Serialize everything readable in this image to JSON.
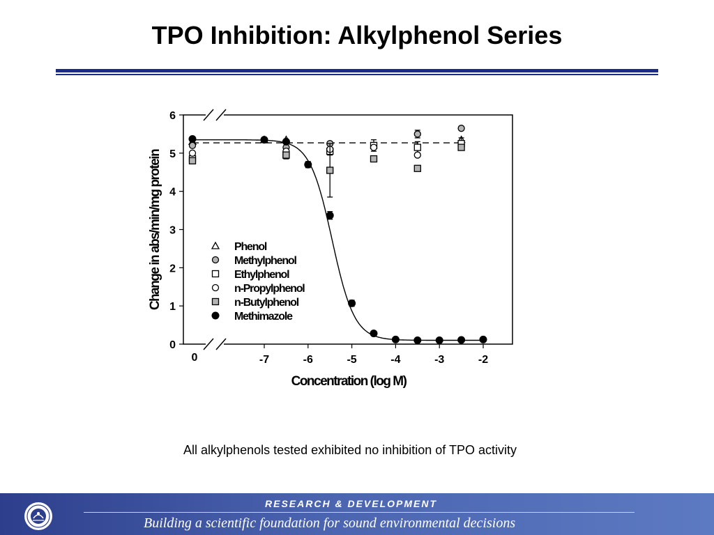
{
  "slide": {
    "title": "TPO Inhibition:  Alkylphenol Series",
    "caption": "All alkylphenols tested exhibited no inhibition of TPO activity"
  },
  "footer": {
    "heading": "RESEARCH &  DEVELOPMENT",
    "tagline": "Building a scientific foundation for sound environmental decisions",
    "seal_icon": "epa-seal-icon"
  },
  "colors": {
    "title_rule": "#1b2a8c",
    "footer_band": "#3d55a6",
    "open_marker_fill": "#ffffff",
    "gray_marker_fill": "#b4b4b4",
    "filled_marker": "#000000"
  },
  "chart_data": {
    "type": "scatter",
    "xlabel": "Concentration (log M)",
    "ylabel": "Change in abs/min/mg protein",
    "xlim": [
      -7.8,
      -1.3
    ],
    "ylim": [
      0,
      6
    ],
    "xticks": [
      "-7",
      "-6",
      "-5",
      "-4",
      "-3",
      "-2"
    ],
    "xtick_values": [
      -7,
      -6,
      -5,
      -4,
      -3,
      -2
    ],
    "x_zero_label": "0",
    "yticks": [
      "0",
      "1",
      "2",
      "3",
      "4",
      "5",
      "6"
    ],
    "ytick_values": [
      0,
      1,
      2,
      3,
      4,
      5,
      6
    ],
    "axis_break": true,
    "legend_position": "center-left",
    "series": [
      {
        "name": "Phenol",
        "marker": "triangle-open",
        "points": [
          {
            "x": 0,
            "y": 5.3,
            "err": 0
          },
          {
            "x": -7,
            "y": 5.35,
            "err": 0
          },
          {
            "x": -6.5,
            "y": 5.35,
            "err": 0
          },
          {
            "x": -2.5,
            "y": 5.35,
            "err": 0
          }
        ]
      },
      {
        "name": "Methylphenol",
        "marker": "circle-gray",
        "points": [
          {
            "x": 0,
            "y": 5.2,
            "err": 0
          },
          {
            "x": -6.5,
            "y": 5.15,
            "err": 0
          },
          {
            "x": -5.5,
            "y": 5.25,
            "err": 0
          },
          {
            "x": -3.5,
            "y": 5.5,
            "err": 0.1
          },
          {
            "x": -2.5,
            "y": 5.65,
            "err": 0
          }
        ]
      },
      {
        "name": "Ethylphenol",
        "marker": "square-open",
        "points": [
          {
            "x": 0,
            "y": 4.85,
            "err": 0.1
          },
          {
            "x": -6.5,
            "y": 4.95,
            "err": 0.1
          },
          {
            "x": -5.5,
            "y": 5.05,
            "err": 0.1
          },
          {
            "x": -4.5,
            "y": 5.2,
            "err": 0.15
          },
          {
            "x": -3.5,
            "y": 5.15,
            "err": 0.15
          },
          {
            "x": -2.5,
            "y": 5.25,
            "err": 0.15
          }
        ]
      },
      {
        "name": "n-Propylphenol",
        "marker": "circle-open",
        "points": [
          {
            "x": 0,
            "y": 5.0,
            "err": 0
          },
          {
            "x": -6.5,
            "y": 5.05,
            "err": 0
          },
          {
            "x": -5.5,
            "y": 5.1,
            "err": 0
          },
          {
            "x": -4.5,
            "y": 5.15,
            "err": 0
          },
          {
            "x": -3.5,
            "y": 4.95,
            "err": 0
          }
        ]
      },
      {
        "name": "n-Butylphenol",
        "marker": "square-gray",
        "points": [
          {
            "x": 0,
            "y": 4.8,
            "err": 0
          },
          {
            "x": -6.5,
            "y": 4.95,
            "err": 0
          },
          {
            "x": -5.5,
            "y": 4.55,
            "err": 0.7
          },
          {
            "x": -4.5,
            "y": 4.85,
            "err": 0
          },
          {
            "x": -3.5,
            "y": 4.6,
            "err": 0
          },
          {
            "x": -2.5,
            "y": 5.15,
            "err": 0
          }
        ]
      },
      {
        "name": "Methimazole",
        "marker": "circle-filled",
        "points": [
          {
            "x": 0,
            "y": 5.37,
            "err": 0
          },
          {
            "x": -7,
            "y": 5.35,
            "err": 0
          },
          {
            "x": -6.5,
            "y": 5.3,
            "err": 0
          },
          {
            "x": -6,
            "y": 4.7,
            "err": 0.08
          },
          {
            "x": -5.5,
            "y": 3.37,
            "err": 0.1
          },
          {
            "x": -5,
            "y": 1.07,
            "err": 0.08
          },
          {
            "x": -4.5,
            "y": 0.28,
            "err": 0
          },
          {
            "x": -4,
            "y": 0.12,
            "err": 0
          },
          {
            "x": -3.5,
            "y": 0.1,
            "err": 0
          },
          {
            "x": -3,
            "y": 0.1,
            "err": 0
          },
          {
            "x": -2.5,
            "y": 0.11,
            "err": 0
          },
          {
            "x": -2,
            "y": 0.12,
            "err": 0
          }
        ]
      }
    ],
    "fits": [
      {
        "style": "solid",
        "model": "sigmoid",
        "top": 5.35,
        "bottom": 0.1,
        "log_ic50": -5.45,
        "hill_slope": 1.7,
        "control_y": 5.35
      },
      {
        "style": "dashed",
        "model": "constant",
        "y": 5.27,
        "control_y": 5.27
      }
    ]
  }
}
